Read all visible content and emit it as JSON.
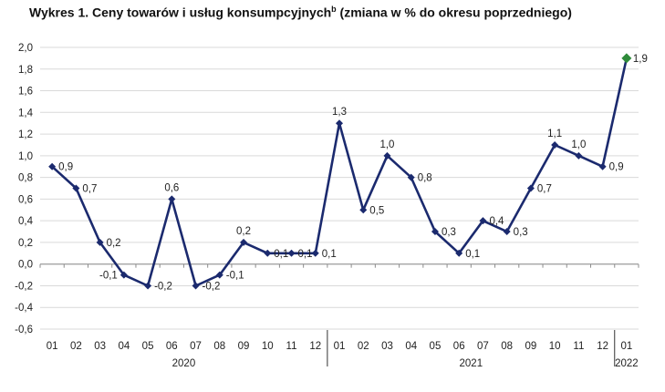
{
  "chart_data": {
    "type": "line",
    "title_main": "Wykres 1. Ceny towarów i usług konsumpcyjnych",
    "title_sup": "b",
    "title_rest": " (zmiana w % do okresu poprzedniego)",
    "categories": [
      "01",
      "02",
      "03",
      "04",
      "05",
      "06",
      "07",
      "08",
      "09",
      "10",
      "11",
      "12",
      "01",
      "02",
      "03",
      "04",
      "05",
      "06",
      "07",
      "08",
      "09",
      "10",
      "11",
      "12",
      "01"
    ],
    "year_groups": [
      {
        "label": "2020",
        "start": 0,
        "end": 11
      },
      {
        "label": "2021",
        "start": 12,
        "end": 23
      },
      {
        "label": "2022",
        "start": 24,
        "end": 24
      }
    ],
    "series": [
      {
        "values": [
          0.9,
          0.7,
          0.2,
          -0.1,
          -0.2,
          0.6,
          -0.2,
          -0.1,
          0.2,
          0.1,
          0.1,
          0.1,
          1.3,
          0.5,
          1.0,
          0.8,
          0.3,
          0.1,
          0.4,
          0.3,
          0.7,
          1.1,
          1.0,
          0.9,
          1.9
        ],
        "labels": [
          "0,9",
          "0,7",
          "0,2",
          "-0,1",
          "-0,2",
          "0,6",
          "-0,2",
          "-0,1",
          "0,2",
          "0,1",
          "0,1",
          "0,1",
          "1,3",
          "0,5",
          "1,0",
          "0,8",
          "0,3",
          "0,1",
          "0,4",
          "0,3",
          "0,7",
          "1,1",
          "1,0",
          "0,9",
          "1,9"
        ],
        "label_pos": [
          "r",
          "r",
          "r",
          "l",
          "r",
          "t",
          "r",
          "r",
          "t",
          "r",
          "r",
          "r",
          "t",
          "r",
          "t",
          "r",
          "r",
          "r",
          "r",
          "r",
          "r",
          "t",
          "t",
          "r",
          "r"
        ],
        "color": "#1b2a6e",
        "last_point_color": "#2e8b3a"
      }
    ],
    "ylim": [
      -0.6,
      2.0
    ],
    "ytick_values": [
      -0.6,
      -0.4,
      -0.2,
      0.0,
      0.2,
      0.4,
      0.6,
      0.8,
      1.0,
      1.2,
      1.4,
      1.6,
      1.8,
      2.0
    ],
    "ytick_labels": [
      "-0,6",
      "-0,4",
      "-0,2",
      "0,0",
      "0,2",
      "0,4",
      "0,6",
      "0,8",
      "1,0",
      "1,2",
      "1,4",
      "1,6",
      "1,8",
      "2,0"
    ],
    "grid": "horizontal",
    "grid_color": "#d9d9d9",
    "legend": "none"
  }
}
